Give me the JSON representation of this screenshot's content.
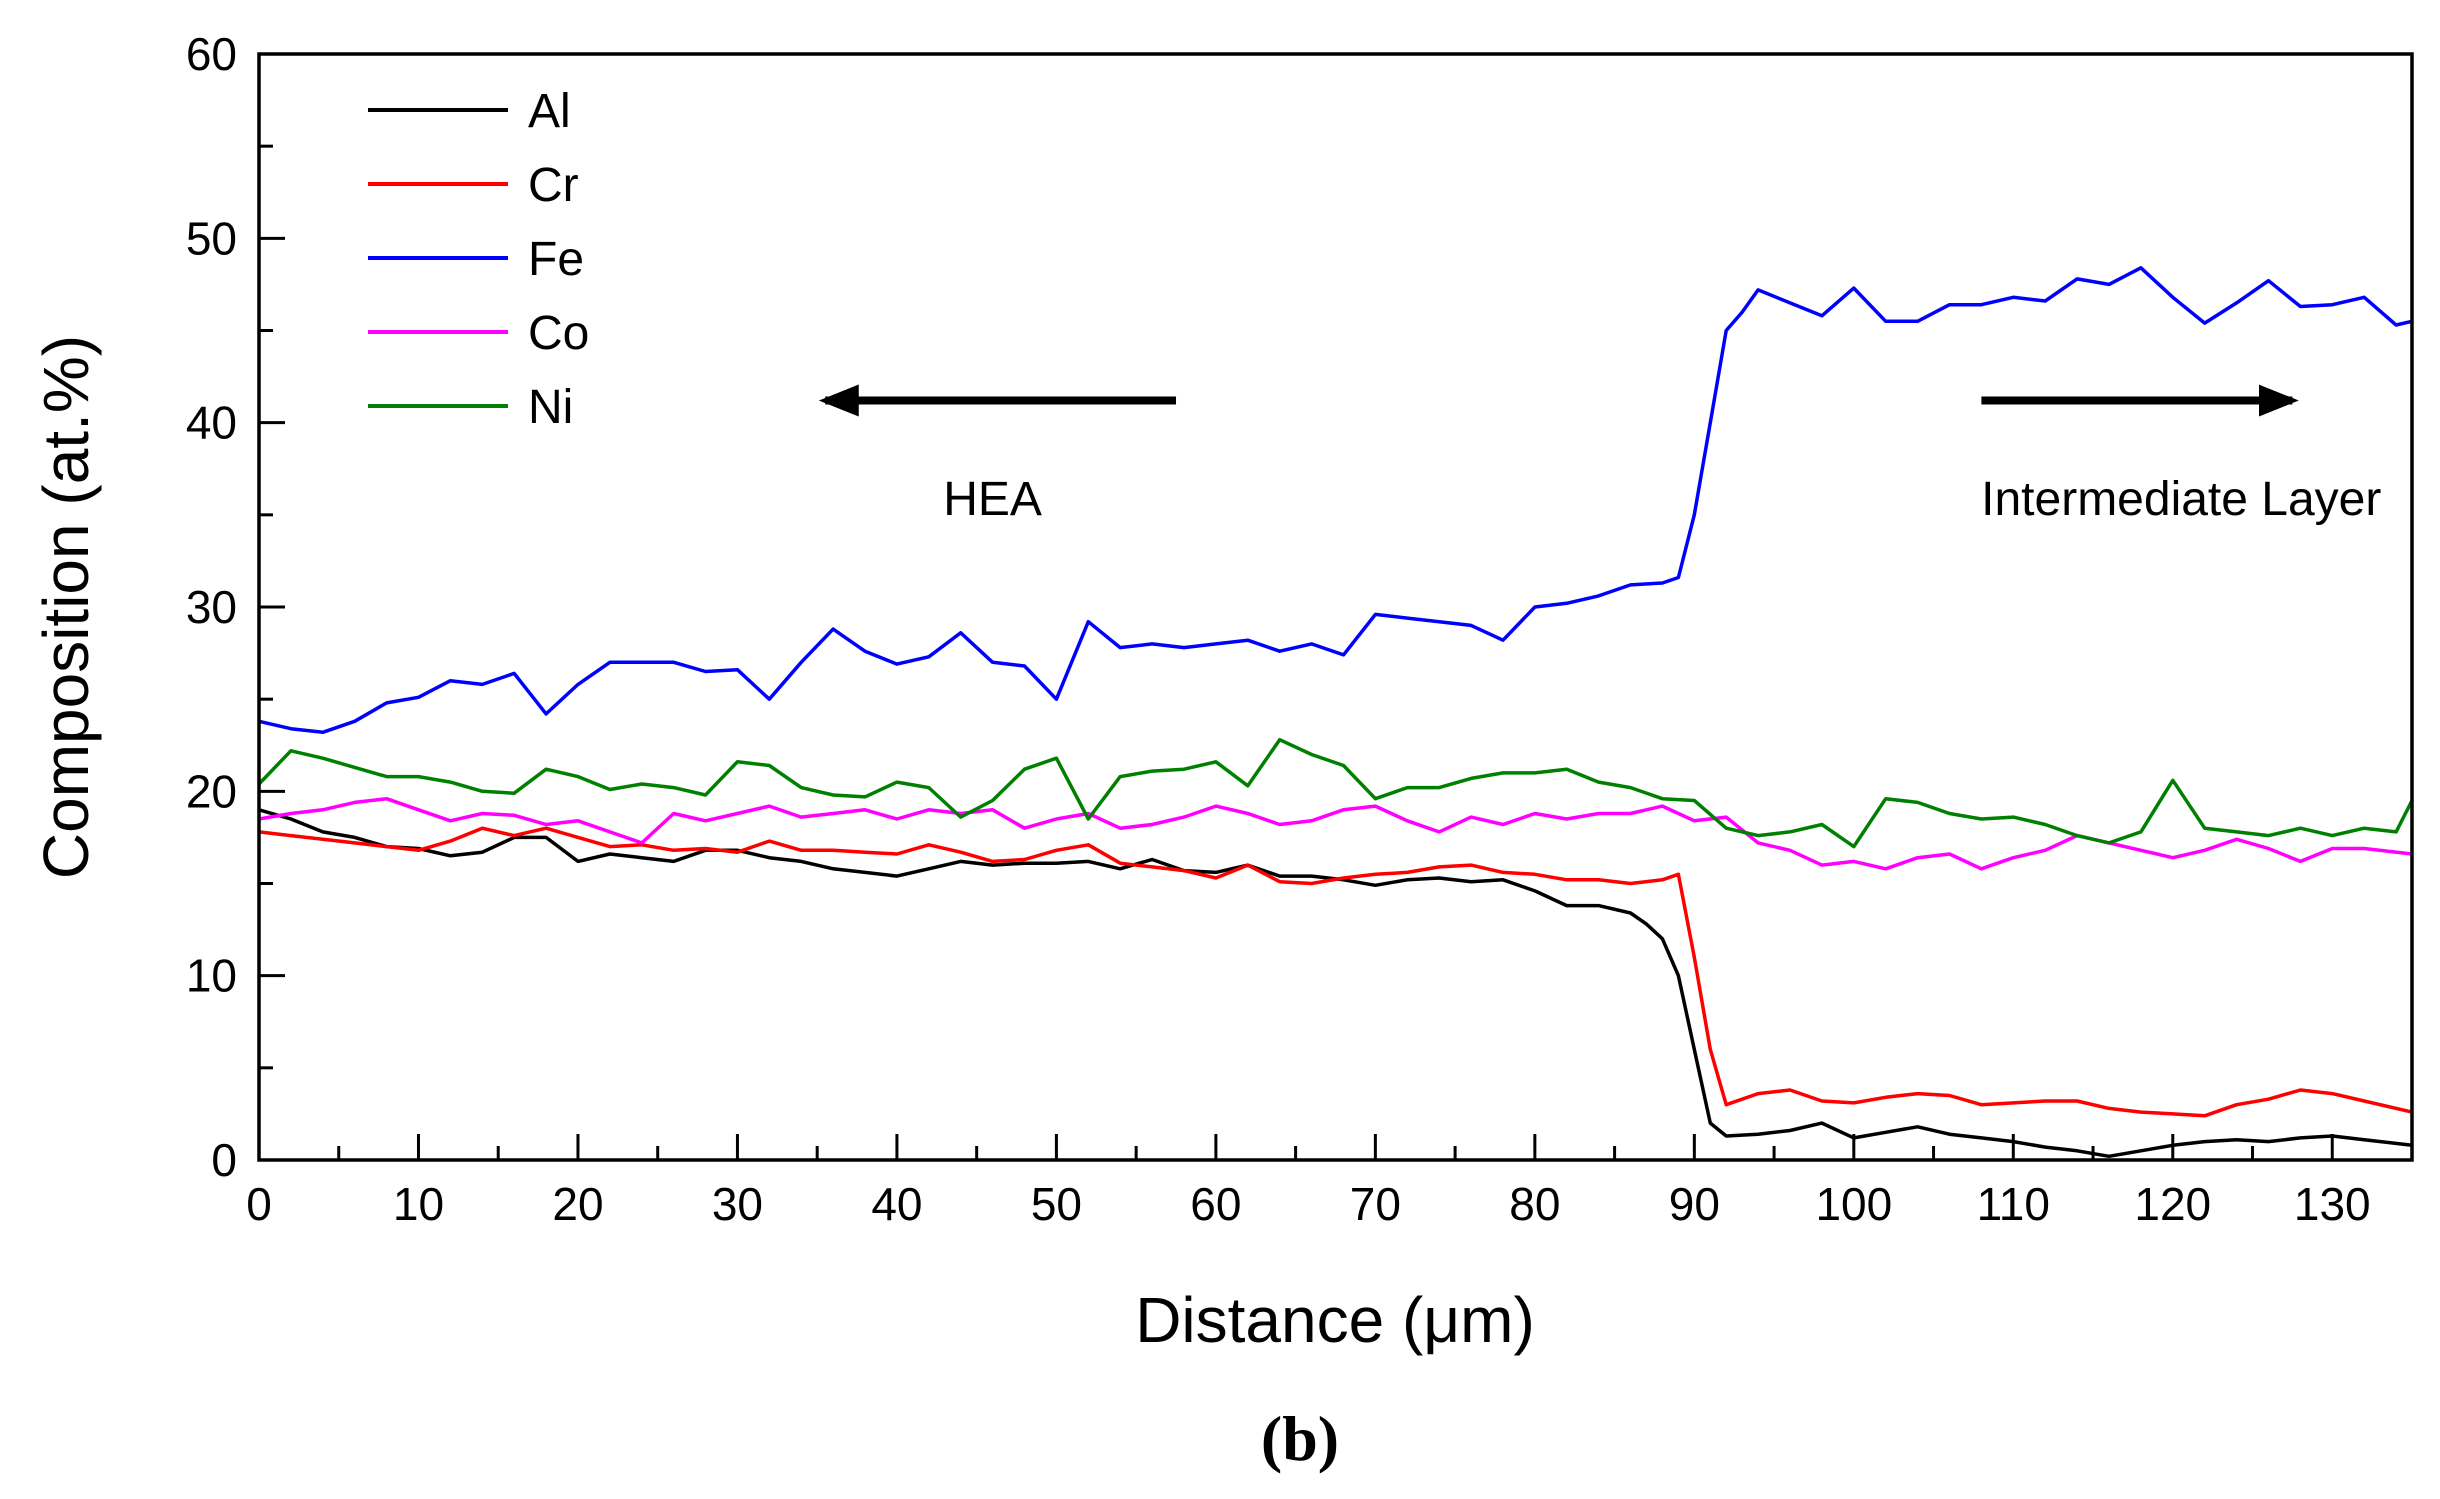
{
  "chart_data": {
    "type": "line",
    "xlabel": "Distance (μm)",
    "ylabel": "Composition (at.%)",
    "xlim": [
      0,
      135
    ],
    "ylim": [
      0,
      60
    ],
    "xticks": [
      0,
      10,
      20,
      30,
      40,
      50,
      60,
      70,
      80,
      90,
      100,
      110,
      120,
      130
    ],
    "yticks": [
      0,
      10,
      20,
      30,
      40,
      50,
      60
    ],
    "legend_position": "top-left",
    "caption": "(b)",
    "annotations": [
      {
        "text": "HEA",
        "arrow_direction": "left",
        "arrow_from_x": 57.5,
        "arrow_to_x": 35.5,
        "arrow_y": 41.2,
        "text_x": 46,
        "text_y": 35
      },
      {
        "text": "Intermediate Layer",
        "arrow_direction": "right",
        "arrow_from_x": 108,
        "arrow_to_x": 127.5,
        "arrow_y": 41.2,
        "text_x": 113,
        "text_y": 35
      }
    ],
    "series": [
      {
        "name": "Al",
        "color": "#000000",
        "x": [
          0,
          2,
          4,
          6,
          8,
          10,
          12,
          14,
          16,
          18,
          20,
          22,
          24,
          26,
          28,
          30,
          32,
          34,
          36,
          38,
          40,
          42,
          44,
          46,
          48,
          50,
          52,
          54,
          56,
          58,
          60,
          62,
          64,
          66,
          68,
          70,
          72,
          74,
          76,
          78,
          80,
          82,
          84,
          86,
          87,
          88,
          89,
          90,
          91,
          92,
          94,
          96,
          98,
          100,
          102,
          104,
          106,
          108,
          110,
          112,
          114,
          116,
          118,
          120,
          122,
          124,
          126,
          128,
          130,
          132,
          135
        ],
        "y": [
          19,
          18.5,
          17.8,
          17.5,
          17,
          16.9,
          16.5,
          16.7,
          17.5,
          17.5,
          16.2,
          16.6,
          16.4,
          16.2,
          16.8,
          16.8,
          16.4,
          16.2,
          15.8,
          15.6,
          15.4,
          15.8,
          16.2,
          16,
          16.1,
          16.1,
          16.2,
          15.8,
          16.3,
          15.7,
          15.6,
          16,
          15.4,
          15.4,
          15.2,
          14.9,
          15.2,
          15.3,
          15.1,
          15.2,
          14.6,
          13.8,
          13.8,
          13.4,
          12.8,
          12,
          10,
          6,
          2,
          1.3,
          1.4,
          1.6,
          2,
          1.2,
          1.5,
          1.8,
          1.4,
          1.2,
          1,
          0.7,
          0.5,
          0.2,
          0.5,
          0.8,
          1,
          1.1,
          1,
          1.2,
          1.3,
          1.1,
          0.8
        ]
      },
      {
        "name": "Cr",
        "color": "#ff0000",
        "x": [
          0,
          2,
          4,
          6,
          8,
          10,
          12,
          14,
          16,
          18,
          20,
          22,
          24,
          26,
          28,
          30,
          32,
          34,
          36,
          38,
          40,
          42,
          44,
          46,
          48,
          50,
          52,
          54,
          56,
          58,
          60,
          62,
          64,
          66,
          68,
          70,
          72,
          74,
          76,
          78,
          80,
          82,
          84,
          86,
          88,
          89,
          90,
          91,
          92,
          94,
          96,
          98,
          100,
          102,
          104,
          106,
          108,
          110,
          112,
          114,
          116,
          118,
          120,
          122,
          124,
          126,
          128,
          130,
          132,
          135
        ],
        "y": [
          17.8,
          17.6,
          17.4,
          17.2,
          17,
          16.8,
          17.3,
          18,
          17.6,
          18,
          17.5,
          17,
          17.1,
          16.8,
          16.9,
          16.7,
          17.3,
          16.8,
          16.8,
          16.7,
          16.6,
          17.1,
          16.7,
          16.2,
          16.3,
          16.8,
          17.1,
          16.1,
          15.9,
          15.7,
          15.3,
          16,
          15.1,
          15,
          15.3,
          15.5,
          15.6,
          15.9,
          16,
          15.6,
          15.5,
          15.2,
          15.2,
          15,
          15.2,
          15.5,
          11,
          6,
          3,
          3.6,
          3.8,
          3.2,
          3.1,
          3.4,
          3.6,
          3.5,
          3,
          3.1,
          3.2,
          3.2,
          2.8,
          2.6,
          2.5,
          2.4,
          3,
          3.3,
          3.8,
          3.6,
          3.2,
          2.6
        ]
      },
      {
        "name": "Fe",
        "color": "#0000ff",
        "x": [
          0,
          2,
          4,
          6,
          8,
          10,
          12,
          14,
          16,
          18,
          20,
          22,
          24,
          26,
          28,
          30,
          32,
          34,
          36,
          38,
          40,
          42,
          44,
          46,
          48,
          50,
          52,
          54,
          56,
          58,
          60,
          62,
          64,
          66,
          68,
          70,
          72,
          74,
          76,
          78,
          80,
          82,
          84,
          86,
          88,
          89,
          90,
          91,
          92,
          93,
          94,
          96,
          98,
          100,
          102,
          104,
          106,
          108,
          110,
          112,
          114,
          116,
          118,
          120,
          122,
          124,
          126,
          128,
          130,
          132,
          134,
          135
        ],
        "y": [
          23.8,
          23.4,
          23.2,
          23.8,
          24.8,
          25.1,
          26,
          25.8,
          26.4,
          24.2,
          25.8,
          27,
          27,
          27,
          26.5,
          26.6,
          25,
          27,
          28.8,
          27.6,
          26.9,
          27.3,
          28.6,
          27,
          26.8,
          25,
          29.2,
          27.8,
          28,
          27.8,
          28,
          28.2,
          27.6,
          28,
          27.4,
          29.6,
          29.4,
          29.2,
          29,
          28.2,
          30,
          30.2,
          30.6,
          31.2,
          31.3,
          31.6,
          35,
          40,
          45,
          46,
          47.2,
          46.5,
          45.8,
          47.3,
          45.5,
          45.5,
          46.4,
          46.4,
          46.8,
          46.6,
          47.8,
          47.5,
          48.4,
          46.8,
          45.4,
          46.5,
          47.7,
          46.3,
          46.4,
          46.8,
          45.3,
          45.5
        ]
      },
      {
        "name": "Co",
        "color": "#ff00ff",
        "x": [
          0,
          2,
          4,
          6,
          8,
          10,
          12,
          14,
          16,
          18,
          20,
          22,
          24,
          26,
          28,
          30,
          32,
          34,
          36,
          38,
          40,
          42,
          44,
          46,
          48,
          50,
          52,
          54,
          56,
          58,
          60,
          62,
          64,
          66,
          68,
          70,
          72,
          74,
          76,
          78,
          80,
          82,
          84,
          86,
          88,
          90,
          92,
          94,
          96,
          98,
          100,
          102,
          104,
          106,
          108,
          110,
          112,
          114,
          116,
          118,
          120,
          122,
          124,
          126,
          128,
          130,
          132,
          135
        ],
        "y": [
          18.5,
          18.8,
          19,
          19.4,
          19.6,
          19,
          18.4,
          18.8,
          18.7,
          18.2,
          18.4,
          17.8,
          17.2,
          18.8,
          18.4,
          18.8,
          19.2,
          18.6,
          18.8,
          19,
          18.5,
          19,
          18.8,
          19,
          18,
          18.5,
          18.8,
          18,
          18.2,
          18.6,
          19.2,
          18.8,
          18.2,
          18.4,
          19,
          19.2,
          18.4,
          17.8,
          18.6,
          18.2,
          18.8,
          18.5,
          18.8,
          18.8,
          19.2,
          18.4,
          18.6,
          17.2,
          16.8,
          16,
          16.2,
          15.8,
          16.4,
          16.6,
          15.8,
          16.4,
          16.8,
          17.6,
          17.2,
          16.8,
          16.4,
          16.8,
          17.4,
          16.9,
          16.2,
          16.9,
          16.9,
          16.6
        ]
      },
      {
        "name": "Ni",
        "color": "#008000",
        "x": [
          0,
          2,
          4,
          6,
          8,
          10,
          12,
          14,
          16,
          18,
          20,
          22,
          24,
          26,
          28,
          30,
          32,
          34,
          36,
          38,
          40,
          42,
          44,
          46,
          48,
          50,
          52,
          54,
          56,
          58,
          60,
          62,
          64,
          66,
          68,
          70,
          72,
          74,
          76,
          78,
          80,
          82,
          84,
          86,
          88,
          90,
          92,
          94,
          96,
          98,
          100,
          102,
          104,
          106,
          108,
          110,
          112,
          114,
          116,
          118,
          120,
          122,
          124,
          126,
          128,
          130,
          132,
          134,
          135
        ],
        "y": [
          20.4,
          22.2,
          21.8,
          21.3,
          20.8,
          20.8,
          20.5,
          20,
          19.9,
          21.2,
          20.8,
          20.1,
          20.4,
          20.2,
          19.8,
          21.6,
          21.4,
          20.2,
          19.8,
          19.7,
          20.5,
          20.2,
          18.6,
          19.5,
          21.2,
          21.8,
          18.5,
          20.8,
          21.1,
          21.2,
          21.6,
          20.3,
          22.8,
          22,
          21.4,
          19.6,
          20.2,
          20.2,
          20.7,
          21,
          21,
          21.2,
          20.5,
          20.2,
          19.6,
          19.5,
          18,
          17.6,
          17.8,
          18.2,
          17,
          19.6,
          19.4,
          18.8,
          18.5,
          18.6,
          18.2,
          17.6,
          17.2,
          17.8,
          20.6,
          18,
          17.8,
          17.6,
          18,
          17.6,
          18,
          17.8,
          19.5
        ]
      }
    ]
  }
}
